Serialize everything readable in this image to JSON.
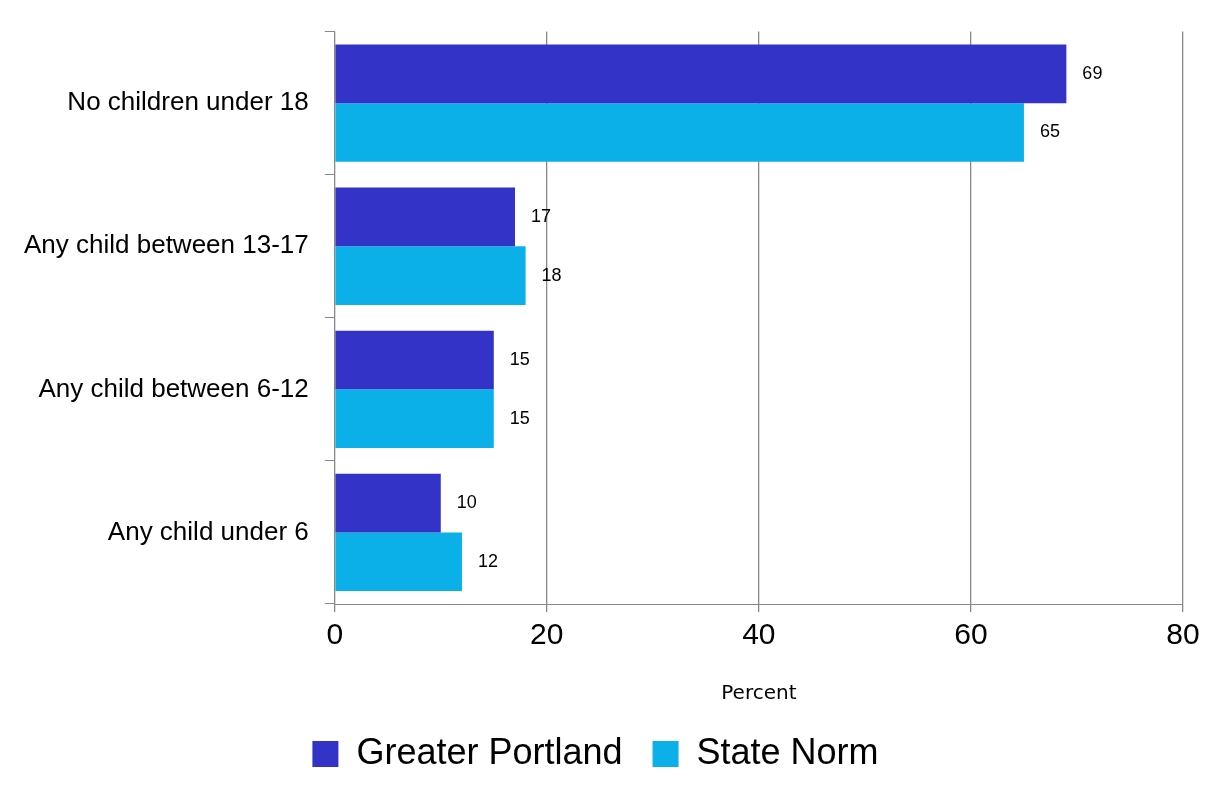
{
  "chart_data": {
    "type": "bar",
    "orientation": "horizontal",
    "xlabel": "Percent",
    "categories": [
      "No children under 18",
      "Any child between 13-17",
      "Any child between 6-12",
      "Any child under 6"
    ],
    "series": [
      {
        "name": "Greater Portland",
        "color": "#3333c8",
        "values": [
          69,
          17,
          15,
          10
        ]
      },
      {
        "name": "State Norm",
        "color": "#0cb0e8",
        "values": [
          65,
          18,
          15,
          12
        ]
      }
    ],
    "xlim": [
      0,
      80
    ],
    "xticks": [
      0,
      20,
      40,
      60,
      80
    ],
    "grid": "x",
    "legend": "bottom",
    "data_labels": true
  }
}
